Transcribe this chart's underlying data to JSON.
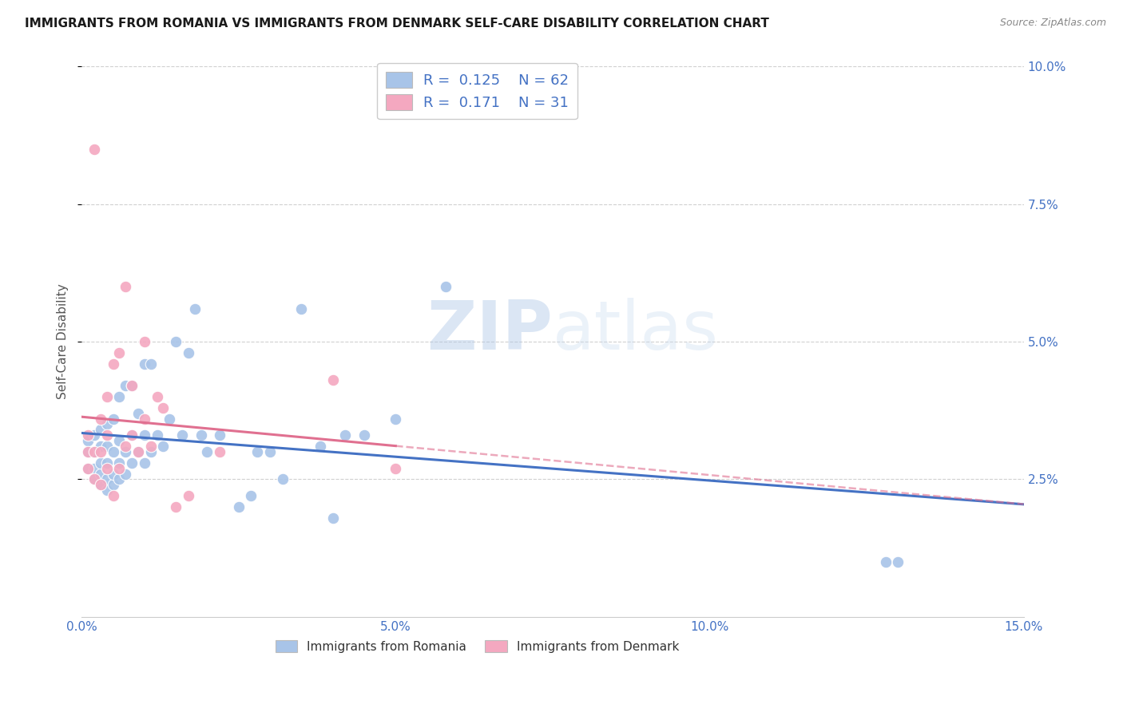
{
  "title": "IMMIGRANTS FROM ROMANIA VS IMMIGRANTS FROM DENMARK SELF-CARE DISABILITY CORRELATION CHART",
  "source": "Source: ZipAtlas.com",
  "ylabel": "Self-Care Disability",
  "xlim": [
    0.0,
    0.15
  ],
  "ylim": [
    0.0,
    0.1
  ],
  "legend_romania": "Immigrants from Romania",
  "legend_denmark": "Immigrants from Denmark",
  "R_romania": "0.125",
  "N_romania": "62",
  "R_denmark": "0.171",
  "N_denmark": "31",
  "color_romania": "#a8c4e8",
  "color_denmark": "#f4a8c0",
  "color_romania_line": "#4472c4",
  "color_denmark_line": "#e07090",
  "color_axis_ticks": "#4472c4",
  "romania_x": [
    0.001,
    0.001,
    0.001,
    0.002,
    0.002,
    0.002,
    0.002,
    0.003,
    0.003,
    0.003,
    0.003,
    0.003,
    0.004,
    0.004,
    0.004,
    0.004,
    0.004,
    0.005,
    0.005,
    0.005,
    0.005,
    0.006,
    0.006,
    0.006,
    0.006,
    0.007,
    0.007,
    0.007,
    0.008,
    0.008,
    0.008,
    0.009,
    0.009,
    0.01,
    0.01,
    0.01,
    0.011,
    0.011,
    0.012,
    0.013,
    0.014,
    0.015,
    0.016,
    0.017,
    0.018,
    0.019,
    0.02,
    0.022,
    0.025,
    0.027,
    0.028,
    0.03,
    0.032,
    0.035,
    0.038,
    0.04,
    0.042,
    0.045,
    0.05,
    0.058,
    0.128,
    0.13
  ],
  "romania_y": [
    0.027,
    0.03,
    0.032,
    0.025,
    0.027,
    0.03,
    0.033,
    0.024,
    0.026,
    0.028,
    0.031,
    0.034,
    0.023,
    0.025,
    0.028,
    0.031,
    0.035,
    0.024,
    0.026,
    0.03,
    0.036,
    0.025,
    0.028,
    0.032,
    0.04,
    0.026,
    0.03,
    0.042,
    0.028,
    0.033,
    0.042,
    0.03,
    0.037,
    0.028,
    0.033,
    0.046,
    0.03,
    0.046,
    0.033,
    0.031,
    0.036,
    0.05,
    0.033,
    0.048,
    0.056,
    0.033,
    0.03,
    0.033,
    0.02,
    0.022,
    0.03,
    0.03,
    0.025,
    0.056,
    0.031,
    0.018,
    0.033,
    0.033,
    0.036,
    0.06,
    0.01,
    0.01
  ],
  "denmark_x": [
    0.001,
    0.001,
    0.001,
    0.002,
    0.002,
    0.003,
    0.003,
    0.003,
    0.004,
    0.004,
    0.004,
    0.005,
    0.005,
    0.006,
    0.006,
    0.007,
    0.007,
    0.008,
    0.008,
    0.009,
    0.01,
    0.01,
    0.011,
    0.012,
    0.013,
    0.015,
    0.017,
    0.022,
    0.04,
    0.05,
    0.002
  ],
  "denmark_y": [
    0.027,
    0.03,
    0.033,
    0.025,
    0.03,
    0.024,
    0.03,
    0.036,
    0.027,
    0.033,
    0.04,
    0.022,
    0.046,
    0.027,
    0.048,
    0.031,
    0.06,
    0.033,
    0.042,
    0.03,
    0.036,
    0.05,
    0.031,
    0.04,
    0.038,
    0.02,
    0.022,
    0.03,
    0.043,
    0.027,
    0.085
  ],
  "watermark_zip": "ZIP",
  "watermark_atlas": "atlas",
  "background_color": "#ffffff",
  "grid_color": "#d0d0d0"
}
